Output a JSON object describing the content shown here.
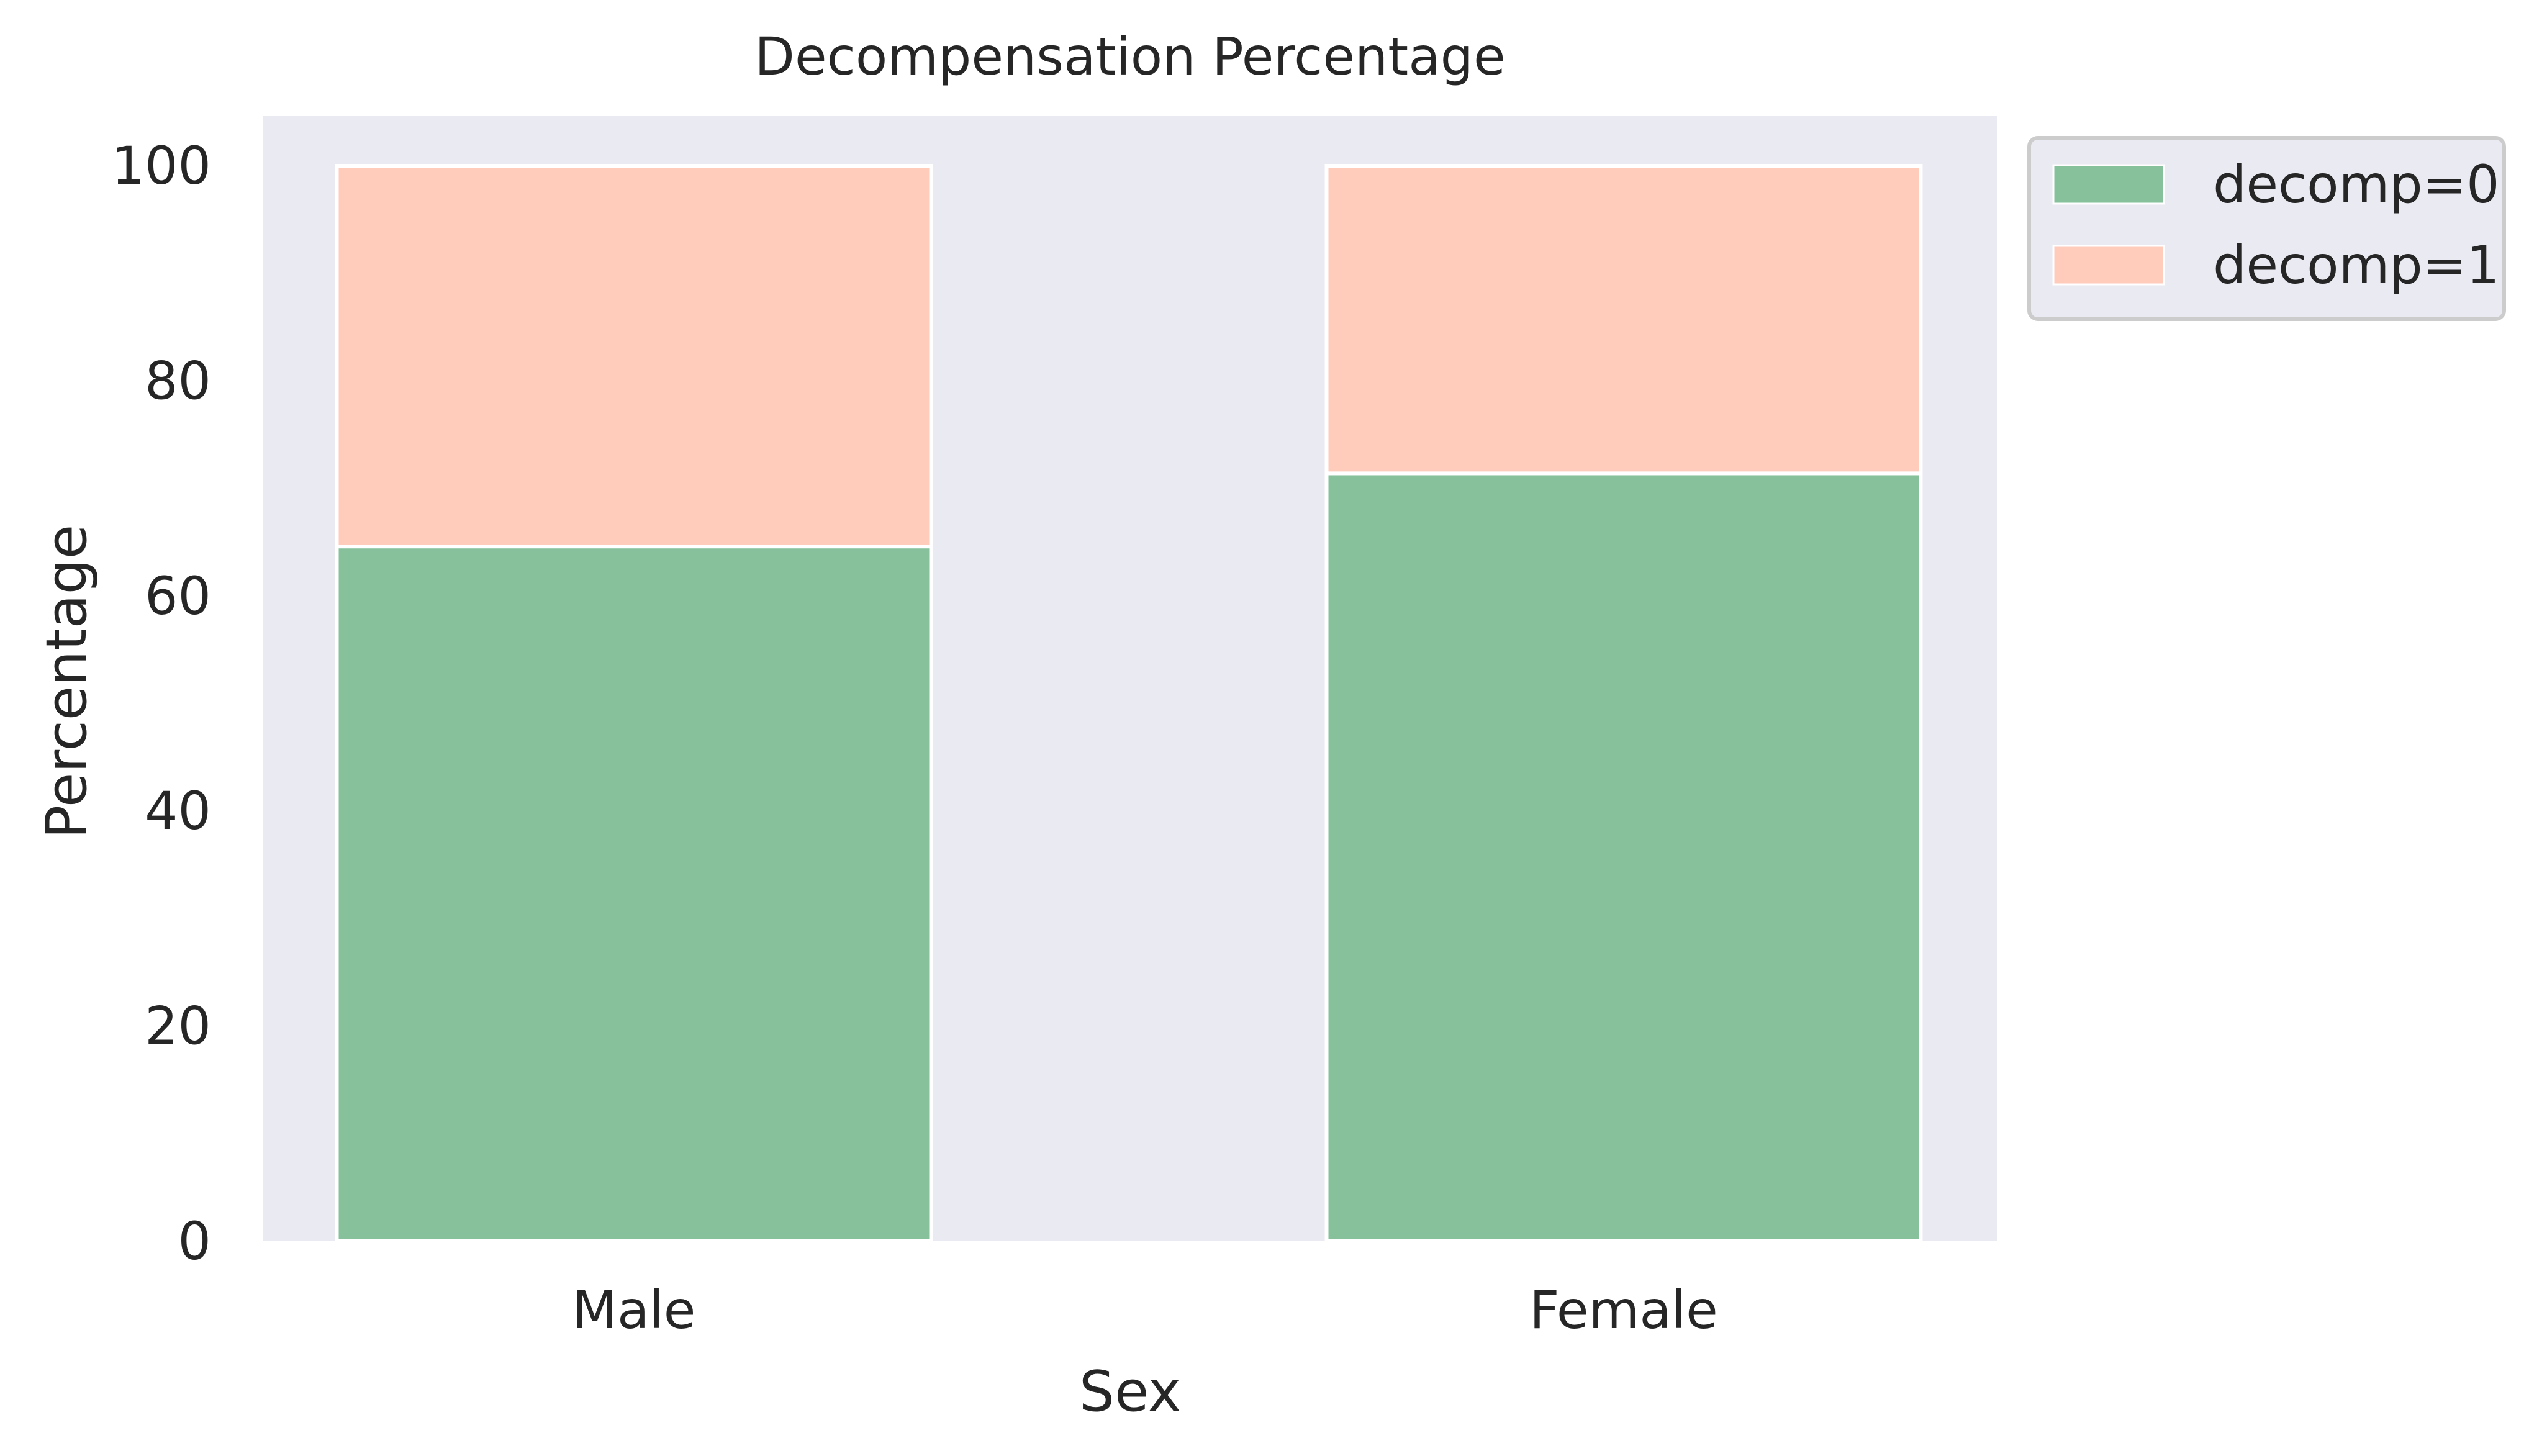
{
  "chart_data": {
    "type": "bar",
    "stacked": true,
    "title": "Decompensation Percentage",
    "xlabel": "Sex",
    "ylabel": "Percentage",
    "categories": [
      "Male",
      "Female"
    ],
    "series": [
      {
        "name": "decomp=0",
        "values": [
          64.6,
          71.4
        ],
        "color": "#86c19c"
      },
      {
        "name": "decomp=1",
        "values": [
          35.4,
          28.6
        ],
        "color": "#ffcbbb"
      }
    ],
    "ylim": [
      0,
      105
    ],
    "yticks": [
      0,
      20,
      40,
      60,
      80,
      100
    ],
    "ytick_labels": [
      "0",
      "20",
      "40",
      "60",
      "80",
      "100"
    ],
    "grid": false,
    "legend_position": "outside top-right",
    "plot_background": "#eaeaf2",
    "bar_edge_color": "#ffffff"
  }
}
